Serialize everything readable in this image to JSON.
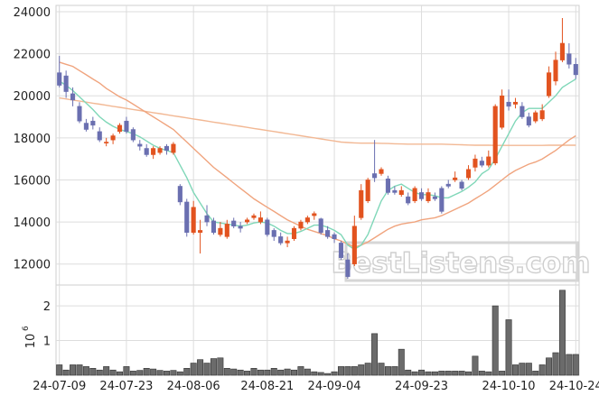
{
  "watermark": "BestListens.com",
  "volume_axis_label": "10",
  "volume_axis_exponent": "6",
  "colors": {
    "up": "#e2531f",
    "down": "#6a6fb0",
    "ma_short": "#7fd7b8",
    "ma_mid": "#f0a47e",
    "ma_long": "#f2b894",
    "volume_bar": "#6b6b6b",
    "grid": "#dddddd"
  },
  "chart_data": [
    {
      "type": "candlestick",
      "title": "",
      "ylim": [
        11000,
        24300
      ],
      "yticks": [
        "24000",
        "22000",
        "20000",
        "18000",
        "16000",
        "14000",
        "12000"
      ],
      "grid": true,
      "categories": [
        "24-07-09",
        "24-07-10",
        "24-07-11",
        "24-07-12",
        "24-07-15",
        "24-07-16",
        "24-07-17",
        "24-07-18",
        "24-07-19",
        "24-07-22",
        "24-07-23",
        "24-07-24",
        "24-07-25",
        "24-07-26",
        "24-07-29",
        "24-07-30",
        "24-07-31",
        "24-08-01",
        "24-08-02",
        "24-08-05",
        "24-08-06",
        "24-08-07",
        "24-08-08",
        "24-08-09",
        "24-08-12",
        "24-08-13",
        "24-08-14",
        "24-08-15",
        "24-08-16",
        "24-08-19",
        "24-08-20",
        "24-08-21",
        "24-08-22",
        "24-08-23",
        "24-08-26",
        "24-08-27",
        "24-08-28",
        "24-08-29",
        "24-08-30",
        "24-09-02",
        "24-09-03",
        "24-09-04",
        "24-09-05",
        "24-09-06",
        "24-09-09",
        "24-09-10",
        "24-09-11",
        "24-09-12",
        "24-09-13",
        "24-09-16",
        "24-09-17",
        "24-09-18",
        "24-09-19",
        "24-09-20",
        "24-09-23",
        "24-09-24",
        "24-09-25",
        "24-09-26",
        "24-09-27",
        "24-09-30",
        "24-10-01",
        "24-10-02",
        "24-10-03",
        "24-10-04",
        "24-10-07",
        "24-10-08",
        "24-10-09",
        "24-10-10",
        "24-10-11",
        "24-10-14",
        "24-10-15",
        "24-10-16",
        "24-10-17",
        "24-10-18",
        "24-10-21",
        "24-10-22",
        "24-10-23",
        "24-10-24"
      ],
      "xtick_labels": [
        "24-07-09",
        "24-07-23",
        "24-08-06",
        "24-08-21",
        "24-09-04",
        "24-09-23",
        "24-10-10",
        "24-10-24"
      ],
      "open": [
        21100,
        20950,
        20100,
        19500,
        18700,
        18800,
        18300,
        17750,
        17900,
        18300,
        18800,
        18400,
        17700,
        17500,
        17200,
        17300,
        17600,
        17300,
        15700,
        14950,
        13500,
        13500,
        14300,
        14050,
        13400,
        13300,
        14050,
        13800,
        14000,
        14200,
        14000,
        14100,
        13600,
        13300,
        13000,
        13200,
        13700,
        14000,
        14300,
        14150,
        13600,
        13400,
        13000,
        12200,
        12000,
        14200,
        15000,
        16300,
        16300,
        16050,
        15500,
        15300,
        15200,
        15000,
        15400,
        15000,
        15200,
        15600,
        15800,
        16000,
        15900,
        16100,
        16600,
        16900,
        16700,
        16800,
        18500,
        19700,
        19600,
        19500,
        19000,
        18800,
        18900,
        20000,
        20700,
        21700,
        22000,
        21500
      ],
      "close": [
        20500,
        20200,
        19800,
        18800,
        18400,
        18600,
        17900,
        17800,
        18100,
        18600,
        18300,
        17900,
        17600,
        17200,
        17500,
        17500,
        17400,
        17700,
        14950,
        13500,
        14700,
        13600,
        14000,
        13500,
        13700,
        13900,
        13800,
        13700,
        14100,
        14300,
        14200,
        13400,
        13300,
        13000,
        13100,
        13700,
        14000,
        14200,
        14400,
        13500,
        13300,
        13200,
        12300,
        11400,
        13800,
        15500,
        16000,
        16100,
        16500,
        15400,
        15400,
        15500,
        14900,
        15600,
        15100,
        15400,
        15100,
        14500,
        15700,
        16100,
        15600,
        16500,
        17000,
        16700,
        17100,
        19500,
        20000,
        19500,
        19700,
        19000,
        18600,
        19200,
        19300,
        21100,
        21700,
        22500,
        21500,
        21000
      ],
      "high": [
        21900,
        21200,
        20400,
        19700,
        18900,
        19000,
        18500,
        18000,
        18200,
        18700,
        19000,
        18500,
        17900,
        17700,
        17600,
        17600,
        17700,
        17800,
        15800,
        15100,
        15000,
        14100,
        14800,
        14200,
        14000,
        14100,
        14200,
        14000,
        14200,
        14400,
        14500,
        14200,
        13700,
        13500,
        13300,
        13800,
        14100,
        14300,
        14500,
        14200,
        13800,
        13500,
        13100,
        12500,
        14300,
        15800,
        16100,
        17900,
        16600,
        16200,
        15700,
        15700,
        15400,
        15700,
        15600,
        15600,
        15400,
        15700,
        16000,
        16400,
        16000,
        16700,
        17200,
        17100,
        17400,
        19600,
        20300,
        20300,
        19900,
        19700,
        19200,
        19300,
        19600,
        21400,
        22100,
        23700,
        22500,
        21800
      ],
      "low": [
        20400,
        19900,
        19500,
        18700,
        18300,
        18400,
        17800,
        17600,
        17700,
        18200,
        18200,
        17800,
        17400,
        17100,
        17000,
        17200,
        17200,
        17200,
        14800,
        13300,
        13400,
        12500,
        13800,
        13400,
        13300,
        13200,
        13700,
        13500,
        13900,
        14100,
        13900,
        13300,
        13100,
        12900,
        12800,
        13100,
        13600,
        13900,
        14100,
        13400,
        13200,
        13000,
        12200,
        11300,
        11900,
        14100,
        14900,
        15900,
        16200,
        15300,
        15300,
        15200,
        14800,
        14900,
        15000,
        14900,
        15000,
        14400,
        15600,
        15900,
        15500,
        16000,
        16400,
        16600,
        16600,
        16700,
        18400,
        19300,
        19400,
        18900,
        18500,
        18700,
        18800,
        19900,
        20500,
        21600,
        21300,
        20800
      ],
      "ma_short": [
        20700,
        20500,
        20250,
        19950,
        19650,
        19350,
        19000,
        18750,
        18550,
        18400,
        18300,
        18200,
        18050,
        17850,
        17650,
        17500,
        17400,
        17300,
        16700,
        16100,
        15400,
        14900,
        14400,
        14000,
        13950,
        13900,
        13850,
        13800,
        13850,
        13950,
        14000,
        13950,
        13800,
        13600,
        13450,
        13450,
        13550,
        13700,
        13850,
        13850,
        13750,
        13600,
        13400,
        12900,
        12700,
        12900,
        13400,
        14200,
        15000,
        15500,
        15700,
        15800,
        15600,
        15400,
        15300,
        15300,
        15250,
        15150,
        15150,
        15300,
        15450,
        15650,
        15900,
        16300,
        16500,
        17000,
        17600,
        18200,
        18800,
        19200,
        19400,
        19400,
        19400,
        19700,
        20000,
        20400,
        20600,
        20800
      ],
      "ma_mid": [
        21600,
        21500,
        21400,
        21200,
        21000,
        20800,
        20600,
        20350,
        20150,
        19950,
        19800,
        19600,
        19400,
        19200,
        19000,
        18800,
        18600,
        18400,
        18100,
        17800,
        17500,
        17200,
        16900,
        16600,
        16350,
        16100,
        15850,
        15600,
        15350,
        15100,
        14900,
        14700,
        14500,
        14300,
        14100,
        13950,
        13800,
        13650,
        13550,
        13450,
        13350,
        13200,
        13100,
        12950,
        12800,
        12900,
        13050,
        13250,
        13450,
        13650,
        13800,
        13900,
        13950,
        14000,
        14100,
        14150,
        14200,
        14300,
        14450,
        14600,
        14750,
        14900,
        15100,
        15300,
        15500,
        15750,
        16000,
        16250,
        16450,
        16600,
        16750,
        16850,
        17000,
        17200,
        17400,
        17650,
        17900,
        18100
      ],
      "ma_long": [
        19900,
        19850,
        19800,
        19750,
        19700,
        19650,
        19600,
        19550,
        19500,
        19450,
        19400,
        19350,
        19300,
        19250,
        19200,
        19150,
        19100,
        19050,
        19000,
        18950,
        18900,
        18850,
        18800,
        18750,
        18700,
        18650,
        18600,
        18550,
        18500,
        18450,
        18400,
        18350,
        18300,
        18250,
        18200,
        18150,
        18100,
        18050,
        18000,
        17950,
        17900,
        17850,
        17800,
        17780,
        17760,
        17750,
        17750,
        17750,
        17740,
        17730,
        17720,
        17710,
        17700,
        17700,
        17700,
        17700,
        17700,
        17700,
        17690,
        17680,
        17670,
        17660,
        17650,
        17650,
        17650,
        17640,
        17640,
        17640,
        17640,
        17640,
        17640,
        17640,
        17640,
        17650,
        17650,
        17650,
        17650,
        17650
      ]
    },
    {
      "type": "bar",
      "title": "",
      "ylabel": "10^6",
      "ylim": [
        0,
        2.6
      ],
      "yticks": [
        "2",
        "1"
      ],
      "values": [
        0.3,
        0.15,
        0.3,
        0.3,
        0.25,
        0.2,
        0.15,
        0.25,
        0.15,
        0.1,
        0.25,
        0.12,
        0.14,
        0.2,
        0.18,
        0.14,
        0.12,
        0.14,
        0.1,
        0.2,
        0.35,
        0.45,
        0.35,
        0.48,
        0.5,
        0.2,
        0.18,
        0.15,
        0.12,
        0.2,
        0.15,
        0.15,
        0.2,
        0.15,
        0.18,
        0.15,
        0.25,
        0.18,
        0.1,
        0.08,
        0.05,
        0.1,
        0.25,
        0.25,
        0.25,
        0.3,
        0.35,
        1.2,
        0.35,
        0.25,
        0.25,
        0.75,
        0.15,
        0.1,
        0.15,
        0.1,
        0.1,
        0.12,
        0.12,
        0.12,
        0.12,
        0.1,
        0.55,
        0.12,
        0.1,
        2.0,
        0.12,
        1.6,
        0.3,
        0.35,
        0.35,
        0.12,
        0.3,
        0.5,
        0.65,
        2.45,
        0.6,
        0.6
      ]
    }
  ]
}
